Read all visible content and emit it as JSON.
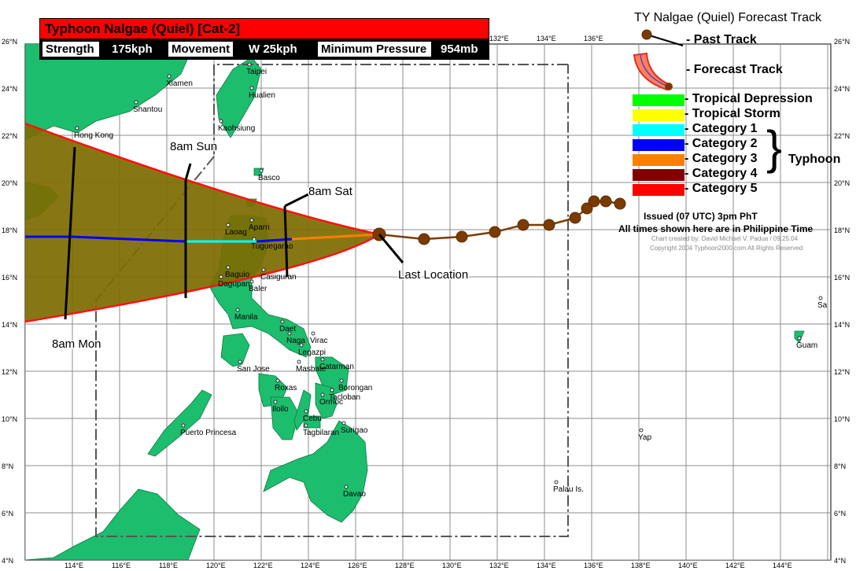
{
  "header": {
    "title": "Typhoon Nalgae (Quiel)  [Cat-2]",
    "strength_label": "Strength",
    "strength_value": "175kph",
    "movement_label": "Movement",
    "movement_value": "W 25kph",
    "pressure_label": "Minimum Pressure",
    "pressure_value": "954mb"
  },
  "legend": {
    "title": "TY Nalgae (Quiel) Forecast Track",
    "past_track": "- Past Track",
    "forecast_track": "- Forecast Track",
    "categories": [
      {
        "label": "- Tropical Depression",
        "color": "#00ff00"
      },
      {
        "label": "- Tropical Storm",
        "color": "#ffff00"
      },
      {
        "label": "- Category 1",
        "color": "#00ffff"
      },
      {
        "label": "- Category 2",
        "color": "#0000ff"
      },
      {
        "label": "- Category 3",
        "color": "#ff8000"
      },
      {
        "label": "- Category 4",
        "color": "#800000"
      },
      {
        "label": "- Category 5",
        "color": "#ff0000"
      }
    ],
    "typhoon_label": "Typhoon",
    "issued": "Issued (07 UTC) 3pm PhT",
    "times_note": "All times shown here are in Philippine Time",
    "credit": "Chart created by:  David Michael V. Padua / 09.25.04",
    "copyright": "Copyright 2004  Typhoon2000.com  All Rights Reserved"
  },
  "axes": {
    "lat_labels": [
      "4°N",
      "6°N",
      "8°N",
      "10°N",
      "12°N",
      "14°N",
      "16°N",
      "18°N",
      "20°N",
      "22°N",
      "24°N",
      "26°N"
    ],
    "lat_right_labels": [
      "4°N",
      "6°N",
      "8°N",
      "10°N",
      "12°N",
      "14°N",
      "16°N",
      "18°N",
      "20°N",
      "22°N",
      "24°N",
      "26°N"
    ],
    "lon_labels": [
      "114°E",
      "116°E",
      "118°E",
      "120°E",
      "122°E",
      "124°E",
      "126°E",
      "128°E",
      "130°E",
      "132°E",
      "134°E",
      "136°E",
      "138°E",
      "140°E",
      "142°E",
      "144°E"
    ],
    "top_lon_labels": [
      "132°E",
      "134°E",
      "136°E"
    ]
  },
  "places": [
    {
      "name": "Xiamen",
      "lon": 118.1,
      "lat": 24.5
    },
    {
      "name": "Shantou",
      "lon": 116.7,
      "lat": 23.4
    },
    {
      "name": "Hong Kong",
      "lon": 114.2,
      "lat": 22.3
    },
    {
      "name": "Taipei",
      "lon": 121.5,
      "lat": 25.0
    },
    {
      "name": "Hualien",
      "lon": 121.6,
      "lat": 24.0
    },
    {
      "name": "Kaohsiung",
      "lon": 120.3,
      "lat": 22.6
    },
    {
      "name": "Basco",
      "lon": 122.0,
      "lat": 20.5
    },
    {
      "name": "Aparri",
      "lon": 121.6,
      "lat": 18.4
    },
    {
      "name": "Laoag",
      "lon": 120.6,
      "lat": 18.2
    },
    {
      "name": "Tuguegarao",
      "lon": 121.7,
      "lat": 17.6
    },
    {
      "name": "Baguio",
      "lon": 120.6,
      "lat": 16.4
    },
    {
      "name": "Dagupan",
      "lon": 120.3,
      "lat": 16.0
    },
    {
      "name": "Casiguran",
      "lon": 122.1,
      "lat": 16.3
    },
    {
      "name": "Baler",
      "lon": 121.6,
      "lat": 15.8
    },
    {
      "name": "Manila",
      "lon": 121.0,
      "lat": 14.6
    },
    {
      "name": "Daet",
      "lon": 122.9,
      "lat": 14.1
    },
    {
      "name": "Naga",
      "lon": 123.2,
      "lat": 13.6
    },
    {
      "name": "Virac",
      "lon": 124.2,
      "lat": 13.6
    },
    {
      "name": "Legazpi",
      "lon": 123.7,
      "lat": 13.1
    },
    {
      "name": "San Jose",
      "lon": 121.1,
      "lat": 12.4
    },
    {
      "name": "Catarman",
      "lon": 124.6,
      "lat": 12.5
    },
    {
      "name": "Masbate",
      "lon": 123.6,
      "lat": 12.4
    },
    {
      "name": "Roxas",
      "lon": 122.7,
      "lat": 11.6
    },
    {
      "name": "Borongan",
      "lon": 125.4,
      "lat": 11.6
    },
    {
      "name": "Tacloban",
      "lon": 125.0,
      "lat": 11.2
    },
    {
      "name": "Ormoc",
      "lon": 124.6,
      "lat": 11.0
    },
    {
      "name": "Iloilo",
      "lon": 122.6,
      "lat": 10.7
    },
    {
      "name": "Cebu",
      "lon": 123.9,
      "lat": 10.3
    },
    {
      "name": "Tagbilaran",
      "lon": 123.9,
      "lat": 9.7
    },
    {
      "name": "Surigao",
      "lon": 125.5,
      "lat": 9.8
    },
    {
      "name": "Puerto Princesa",
      "lon": 118.7,
      "lat": 9.7
    },
    {
      "name": "Davao",
      "lon": 125.6,
      "lat": 7.1
    },
    {
      "name": "Palau Is.",
      "lon": 134.5,
      "lat": 7.3
    },
    {
      "name": "Yap",
      "lon": 138.1,
      "lat": 9.5
    },
    {
      "name": "Guam",
      "lon": 144.8,
      "lat": 13.4
    },
    {
      "name": "Sa",
      "lon": 145.7,
      "lat": 15.1
    }
  ],
  "past_track": [
    {
      "lon": 137.2,
      "lat": 19.1
    },
    {
      "lon": 136.6,
      "lat": 19.2
    },
    {
      "lon": 136.1,
      "lat": 19.2
    },
    {
      "lon": 135.8,
      "lat": 18.9
    },
    {
      "lon": 135.3,
      "lat": 18.5
    },
    {
      "lon": 134.2,
      "lat": 18.2
    },
    {
      "lon": 133.1,
      "lat": 18.2
    },
    {
      "lon": 131.9,
      "lat": 17.9
    },
    {
      "lon": 130.5,
      "lat": 17.7
    },
    {
      "lon": 128.9,
      "lat": 17.6
    },
    {
      "lon": 127.0,
      "lat": 17.8
    }
  ],
  "forecast_track": [
    {
      "lon": 127.0,
      "lat": 17.8,
      "cat": 3
    },
    {
      "lon": 123.3,
      "lat": 17.6,
      "cat": 3
    },
    {
      "lon": 121.8,
      "lat": 17.5,
      "cat": 2
    },
    {
      "lon": 118.8,
      "lat": 17.5,
      "cat": 1
    },
    {
      "lon": 114.0,
      "lat": 17.7,
      "cat": 2
    },
    {
      "lon": 112.0,
      "lat": 17.7,
      "cat": 2
    }
  ],
  "forecast_labels": [
    {
      "text": "8am Sat",
      "lon": 123.0,
      "lat": 19.0
    },
    {
      "text": "8am Sun",
      "lon": 118.8,
      "lat": 20.1
    },
    {
      "text": "8am Mon",
      "lon": 114.0,
      "lat": 14.0
    },
    {
      "text": "Last Location",
      "lon": 127.0,
      "lat": 17.8
    }
  ]
}
